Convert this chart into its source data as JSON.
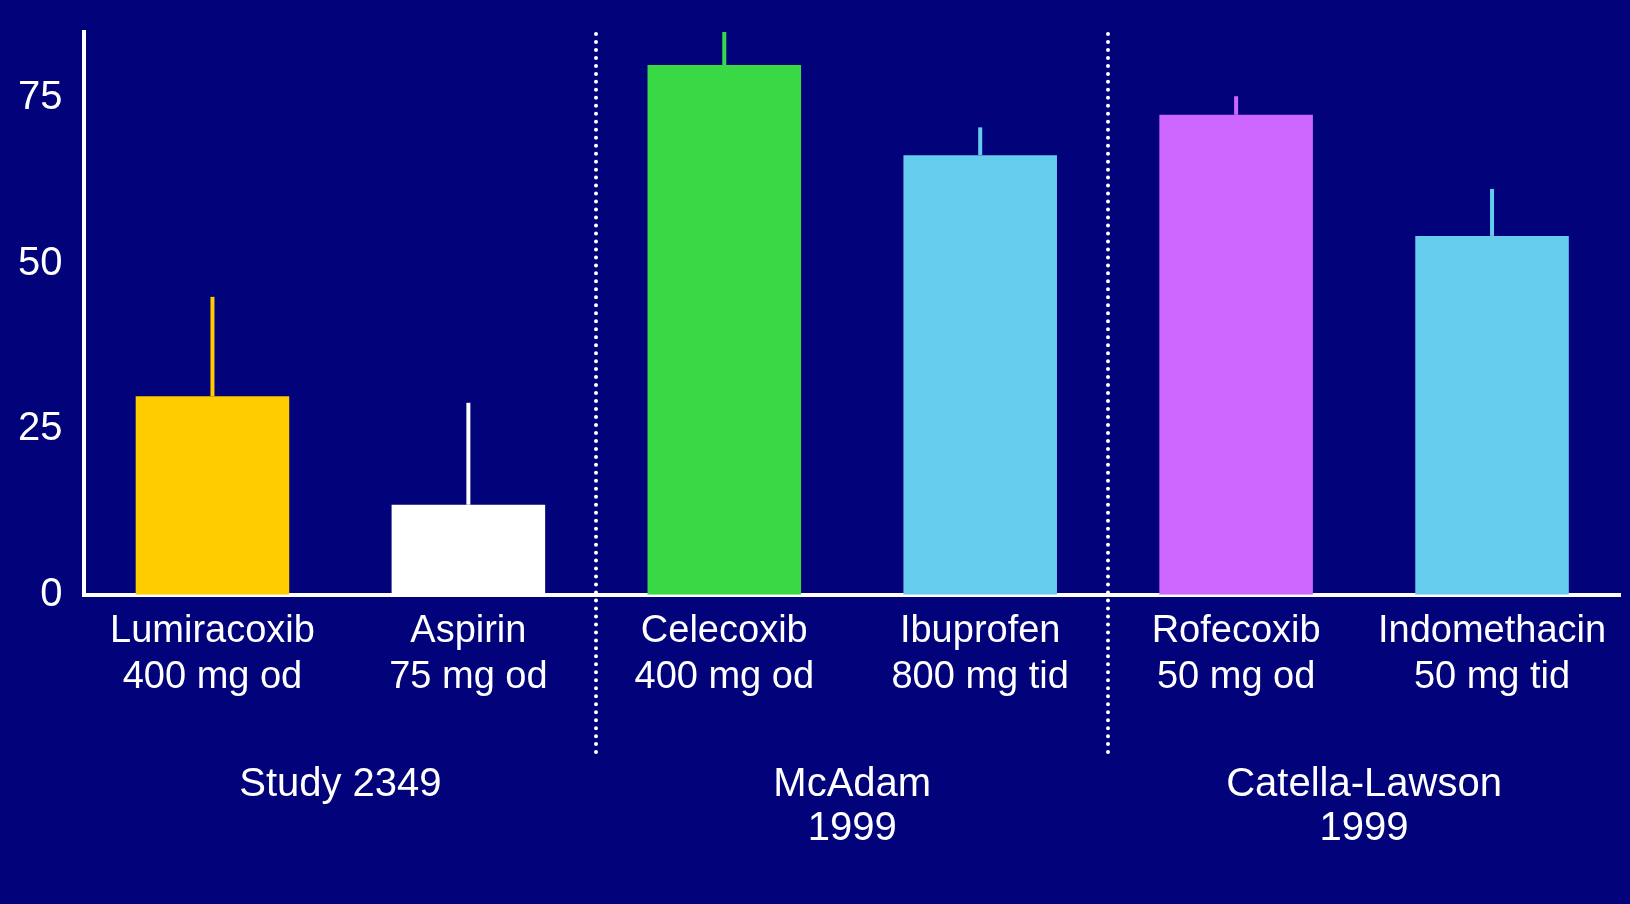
{
  "chart_data": {
    "type": "bar",
    "categories": [
      "Lumiracoxib\n400 mg od",
      "Aspirin\n75 mg od",
      "Celecoxib\n400 mg od",
      "Ibuprofen\n800 mg tid",
      "Rofecoxib\n50 mg od",
      "Indomethacin\n50 mg tid"
    ],
    "values": [
      30,
      13.6,
      80,
      66.4,
      72.5,
      54.2
    ],
    "colors": [
      "#ffcc00",
      "#ffffff",
      "#39d845",
      "#66ccee",
      "#cc66ff",
      "#66ccee"
    ],
    "errors": [
      [
        30,
        45
      ],
      [
        13.6,
        29
      ],
      [
        80,
        85
      ],
      [
        66.4,
        70.6
      ],
      [
        72.5,
        75.3
      ],
      [
        54.2,
        61.3
      ]
    ],
    "ylim": [
      0,
      85
    ],
    "yticks": [
      0,
      25,
      50,
      75
    ],
    "grid": false,
    "annotations": [
      "Study 2349",
      "McAdam\n1999",
      "Catella-Lawson\n1999"
    ]
  }
}
